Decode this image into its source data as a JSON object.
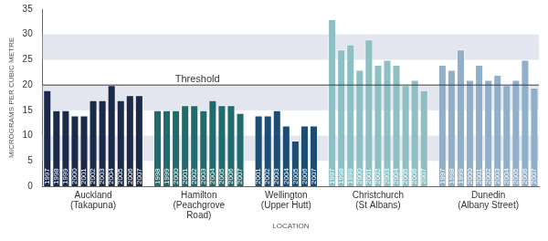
{
  "chart_data": {
    "type": "bar",
    "y_label": "MICROGRAMS PER CUBIC METRE",
    "x_label": "LOCATION",
    "ylim": [
      0,
      35
    ],
    "yticks": [
      0,
      5,
      10,
      15,
      20,
      25,
      30,
      35
    ],
    "grid": true,
    "threshold": {
      "value": 20,
      "label": "Threshold"
    },
    "groups": [
      {
        "name": [
          "Auckland",
          "(Takapuna)"
        ],
        "color": "#1b2a4a",
        "categories": [
          "1997",
          "1998",
          "1999",
          "2000",
          "2001",
          "2002",
          "2003",
          "2004",
          "2005",
          "2006",
          "2007"
        ],
        "values": [
          19,
          15,
          15,
          14,
          14,
          17,
          17,
          20,
          17,
          18,
          18
        ]
      },
      {
        "name": [
          "Hamilton",
          "(Peachgrove",
          "Road)"
        ],
        "color": "#1f6b6e",
        "categories": [
          "1998",
          "1999",
          "2000",
          "2001",
          "2002",
          "2003",
          "2004",
          "2005",
          "2006",
          "2007"
        ],
        "values": [
          15,
          15,
          15,
          16,
          16,
          15,
          17,
          16,
          16,
          14.5
        ]
      },
      {
        "name": [
          "Wellington",
          "(Upper Hutt)"
        ],
        "color": "#1e4d74",
        "categories": [
          "2001",
          "2002",
          "2003",
          "2004",
          "2005",
          "2006",
          "2007"
        ],
        "values": [
          14,
          14,
          15,
          12,
          9,
          12,
          12
        ]
      },
      {
        "name": [
          "Christchurch",
          "(St Albans)"
        ],
        "color": "#8ebfc3",
        "categories": [
          "1997",
          "1998",
          "1999",
          "2000",
          "2001",
          "2002",
          "2003",
          "2004",
          "2005",
          "2006",
          "2007"
        ],
        "values": [
          33,
          27,
          28,
          23,
          29,
          24,
          25,
          24,
          20,
          21,
          19
        ]
      },
      {
        "name": [
          "Dunedin",
          "(Albany Street)"
        ],
        "color": "#8fb0cd",
        "categories": [
          "1997",
          "1998",
          "1999",
          "2000",
          "2001",
          "2002",
          "2003",
          "2004",
          "2005",
          "2006",
          "2007"
        ],
        "values": [
          24,
          23,
          27,
          21,
          24,
          21,
          22,
          20,
          21,
          25,
          19.5
        ]
      }
    ]
  }
}
